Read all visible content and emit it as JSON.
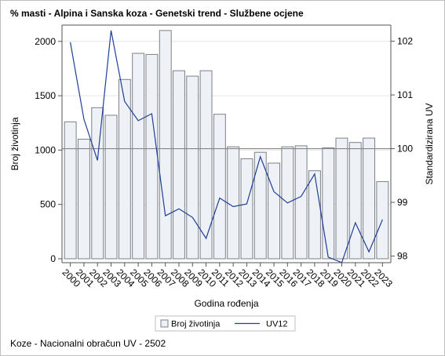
{
  "title": "% masti - Alpina i Sanska koza - Genetski trend - Službene ocjene",
  "footnote": "Koze - Nacionalni obračun UV - 2502",
  "colors": {
    "bar_fill": "#eef1f5",
    "bar_stroke": "#7c8088",
    "line": "#1f3f99",
    "reference_line": "#888888",
    "axis": "#555555"
  },
  "chart_data": {
    "type": "bar",
    "title": "% masti - Alpina i Sanska koza - Genetski trend - Službene ocjene",
    "xlabel": "Godina rođenja",
    "ylabel": "Broj životinja",
    "y2label": "Standardizirana UV",
    "categories": [
      "2000",
      "2001",
      "2002",
      "2003",
      "2004",
      "2005",
      "2006",
      "2007",
      "2008",
      "2009",
      "2010",
      "2011",
      "2012",
      "2013",
      "2014",
      "2015",
      "2016",
      "2017",
      "2018",
      "2019",
      "2020",
      "2021",
      "2022",
      "2023"
    ],
    "ylim": [
      0,
      2150
    ],
    "yticks": [
      0,
      500,
      1000,
      1500,
      2000
    ],
    "y2lim": [
      97.95,
      102.3
    ],
    "y2ticks": [
      98,
      99,
      100,
      101,
      102
    ],
    "reference_y2": 100,
    "grid": true,
    "legend_position": "bottom",
    "series": [
      {
        "name": "Broj životinja",
        "kind": "bar",
        "axis": "left",
        "values": [
          1260,
          1100,
          1390,
          1320,
          1650,
          1890,
          1880,
          2100,
          1730,
          1680,
          1730,
          1330,
          1030,
          920,
          980,
          880,
          1030,
          1040,
          810,
          1020,
          1110,
          1070,
          1110,
          710
        ]
      },
      {
        "name": "UV12",
        "kind": "line",
        "axis": "right",
        "values": [
          101.98,
          100.55,
          99.78,
          102.2,
          100.88,
          100.52,
          100.65,
          98.75,
          98.88,
          98.72,
          98.33,
          99.08,
          98.92,
          98.97,
          99.85,
          99.2,
          98.99,
          99.11,
          99.53,
          97.98,
          97.88,
          98.62,
          98.08,
          98.68
        ]
      }
    ]
  }
}
